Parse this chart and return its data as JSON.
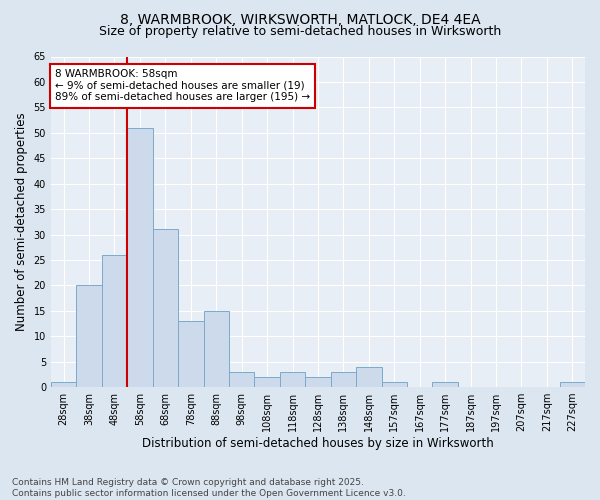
{
  "title1": "8, WARMBROOK, WIRKSWORTH, MATLOCK, DE4 4EA",
  "title2": "Size of property relative to semi-detached houses in Wirksworth",
  "xlabel": "Distribution of semi-detached houses by size in Wirksworth",
  "ylabel": "Number of semi-detached properties",
  "footnote": "Contains HM Land Registry data © Crown copyright and database right 2025.\nContains public sector information licensed under the Open Government Licence v3.0.",
  "bin_labels": [
    "28sqm",
    "38sqm",
    "48sqm",
    "58sqm",
    "68sqm",
    "78sqm",
    "88sqm",
    "98sqm",
    "108sqm",
    "118sqm",
    "128sqm",
    "138sqm",
    "148sqm",
    "157sqm",
    "167sqm",
    "177sqm",
    "187sqm",
    "197sqm",
    "207sqm",
    "217sqm",
    "227sqm"
  ],
  "bar_heights": [
    1,
    20,
    26,
    51,
    31,
    13,
    15,
    3,
    2,
    3,
    2,
    3,
    4,
    1,
    0,
    1,
    0,
    0,
    0,
    0,
    1
  ],
  "bar_color": "#ccdaeb",
  "bar_edge_color": "#7aaaca",
  "vline_x_index": 3,
  "vline_color": "#cc0000",
  "annotation_text": "8 WARMBROOK: 58sqm\n← 9% of semi-detached houses are smaller (19)\n89% of semi-detached houses are larger (195) →",
  "ylim": [
    0,
    65
  ],
  "yticks": [
    0,
    5,
    10,
    15,
    20,
    25,
    30,
    35,
    40,
    45,
    50,
    55,
    60,
    65
  ],
  "background_color": "#dce6f0",
  "plot_bg_color": "#e8eef5",
  "grid_color": "#ffffff",
  "title_fontsize": 10,
  "subtitle_fontsize": 9,
  "axis_label_fontsize": 8.5,
  "tick_fontsize": 7,
  "footnote_fontsize": 6.5,
  "annotation_fontsize": 7.5
}
